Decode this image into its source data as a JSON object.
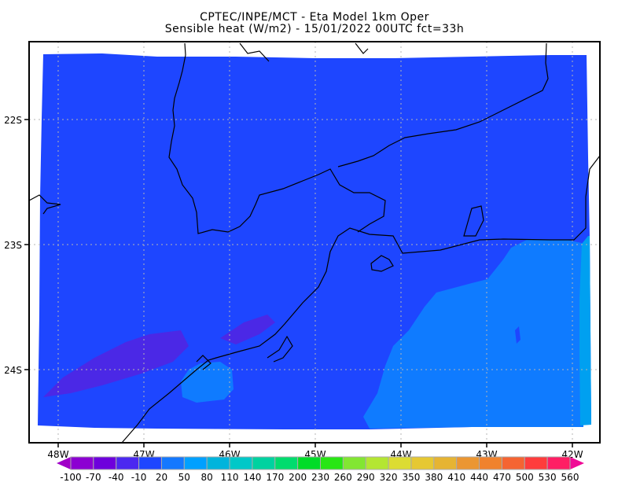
{
  "title": {
    "line1": "CPTEC/INPE/MCT -  Eta Model 1km Oper",
    "line2": "Sensible heat (W/m2) - 15/01/2022 00UTC fct=33h"
  },
  "map": {
    "lon_ticks": [
      "48W",
      "47W",
      "46W",
      "45W",
      "44W",
      "43W",
      "42W"
    ],
    "lat_ticks": [
      "22S",
      "23S",
      "24S"
    ],
    "grid": true,
    "field_colors": {
      "background_field": "#1e46ff",
      "warmer_ocean": "#0f7bff",
      "eastern_edge": "#00a0f0",
      "negative_patches": "#4b28e6"
    }
  },
  "colorbar": {
    "labels": [
      "-100",
      "-70",
      "-40",
      "-10",
      "20",
      "50",
      "80",
      "110",
      "140",
      "170",
      "200",
      "230",
      "260",
      "290",
      "320",
      "350",
      "380",
      "410",
      "440",
      "470",
      "500",
      "530",
      "560"
    ],
    "low_color": "#a000c8",
    "high_color": "#f00a96",
    "colors": [
      "#8c00d2",
      "#6e00dc",
      "#4b28f0",
      "#1e46ff",
      "#1478ff",
      "#00a0ff",
      "#00b4dc",
      "#00c8c8",
      "#00d2a0",
      "#00dc6e",
      "#00dc28",
      "#28e614",
      "#82e632",
      "#b4e632",
      "#dcdc32",
      "#e6c832",
      "#e6b432",
      "#eb9632",
      "#f0822d",
      "#f56432",
      "#ff3c3c",
      "#ff1e64"
    ]
  }
}
